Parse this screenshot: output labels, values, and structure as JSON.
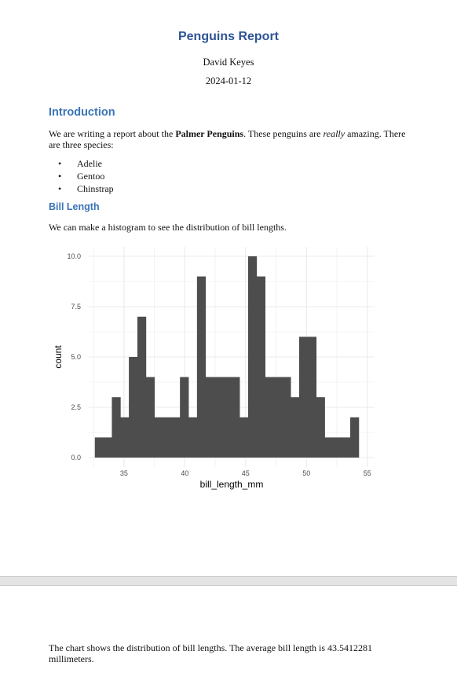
{
  "report": {
    "title": "Penguins Report",
    "author": "David Keyes",
    "date": "2024-01-12"
  },
  "introduction": {
    "heading": "Introduction",
    "text_before_bold": "We are writing a report about the ",
    "bold_text": "Palmer Penguins",
    "text_middle": ". These penguins are ",
    "italic_text": "really",
    "text_after": " amazing. There are three species:",
    "species": [
      "Adelie",
      "Gentoo",
      "Chinstrap"
    ]
  },
  "bill_length": {
    "heading": "Bill Length",
    "text": "We can make a histogram to see the distribution of bill lengths."
  },
  "summary": {
    "text": "The chart shows the distribution of bill lengths. The average bill length is 43.5412281 millimeters."
  },
  "colors": {
    "heading": "#2f5496",
    "subheading": "#3a74b8",
    "bars": "#4d4d4d",
    "grid": "#ebebeb"
  },
  "chart_data": {
    "type": "bar",
    "xlabel": "bill_length_mm",
    "ylabel": "count",
    "xlim": [
      32.1,
      55.6
    ],
    "ylim": [
      0,
      10
    ],
    "x_ticks": [
      "35",
      "40",
      "45",
      "50",
      "55"
    ],
    "y_ticks": [
      "0.0",
      "2.5",
      "5.0",
      "7.5",
      "10.0"
    ],
    "grid": true,
    "bin_width": 0.7,
    "bin_starts": [
      32.6,
      33.3,
      34.0,
      34.7,
      35.4,
      36.1,
      36.8,
      37.5,
      38.2,
      38.9,
      39.6,
      40.3,
      41.0,
      41.7,
      42.4,
      43.1,
      43.8,
      44.5,
      45.2,
      45.9,
      46.6,
      47.3,
      48.0,
      48.7,
      49.4,
      50.1,
      50.8,
      51.5,
      52.2,
      52.9,
      53.6
    ],
    "values": [
      1,
      1,
      3,
      2,
      5,
      7,
      4,
      2,
      2,
      2,
      4,
      2,
      9,
      4,
      4,
      4,
      4,
      2,
      10,
      9,
      4,
      4,
      4,
      3,
      6,
      6,
      3,
      1,
      1,
      1,
      2
    ]
  }
}
